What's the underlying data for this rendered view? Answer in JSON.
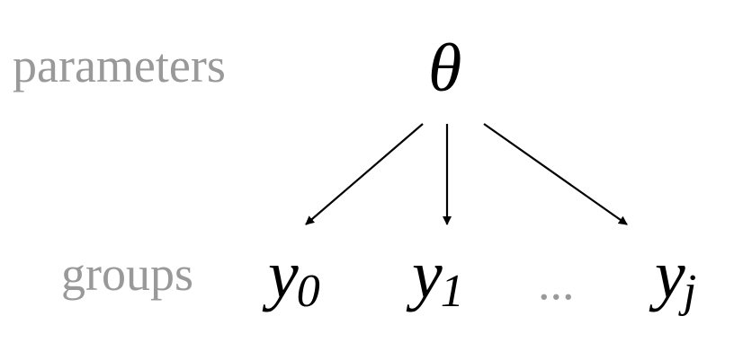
{
  "labels": {
    "parameters": "parameters",
    "groups": "groups"
  },
  "nodes": {
    "theta": "θ",
    "y0_base": "y",
    "y0_sub": "0",
    "y1_base": "y",
    "y1_sub": "1",
    "ellipsis": "...",
    "yj_base": "y",
    "yj_sub": "j"
  },
  "edges": [
    {
      "from": "theta",
      "to": "y0"
    },
    {
      "from": "theta",
      "to": "y1"
    },
    {
      "from": "theta",
      "to": "yj"
    }
  ],
  "colors": {
    "label": "#999999",
    "node": "#000000",
    "arrow": "#000000"
  }
}
